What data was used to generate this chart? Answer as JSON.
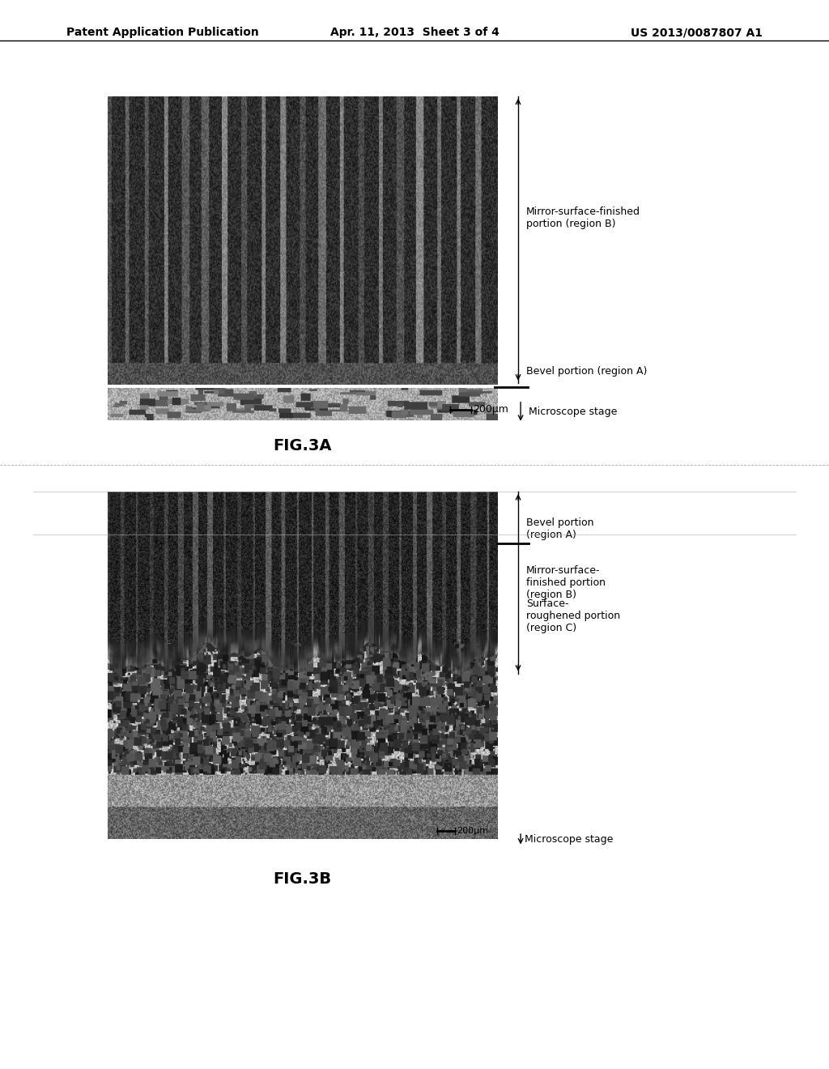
{
  "header_left": "Patent Application Publication",
  "header_center": "Apr. 11, 2013  Sheet 3 of 4",
  "header_right": "US 2013/0087807 A1",
  "fig3a_label": "FIG.3A",
  "fig3b_label": "FIG.3B",
  "fig3a_annotations": {
    "mirror_text": "Mirror-surface-finished\nportion (region B)",
    "bevel_text": "Bevel portion (region A)",
    "scale_text": "200μm",
    "microscope_text": "Microscope stage"
  },
  "fig3b_annotations": {
    "mirror_text": "Mirror-surface-\nfinished portion\n(region B)",
    "surface_text": "Surface-\nroughened portion\n(region C)",
    "bevel_text": "Bevel portion\n(region A)",
    "scale_text": "200μm",
    "microscope_text": "Microscope stage"
  },
  "bg_color": "#ffffff",
  "text_color": "#000000",
  "header_fontsize": 10,
  "annotation_fontsize": 9,
  "fig_label_fontsize": 14
}
